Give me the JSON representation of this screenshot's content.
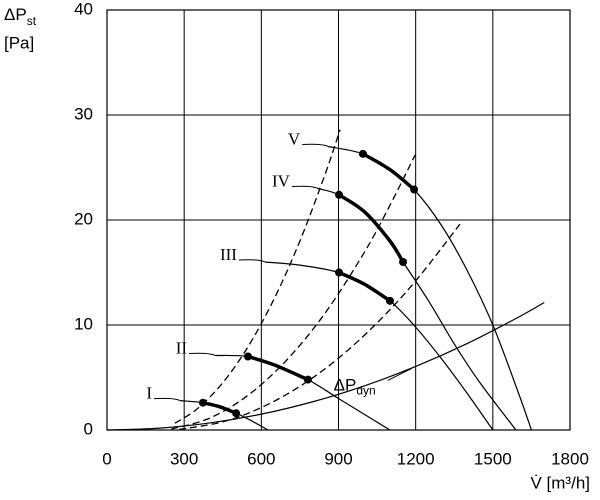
{
  "chart_data": {
    "type": "line",
    "x_label": "V̇ [m³/h]",
    "y_label": "ΔP",
    "y_label_sub": "st",
    "y_label_unit": "[Pa]",
    "xlim": [
      0,
      1800
    ],
    "xticks": [
      0,
      300,
      600,
      900,
      1200,
      1500,
      1800
    ],
    "ylim": [
      0,
      40
    ],
    "yticks": [
      0,
      10,
      20,
      30,
      40
    ],
    "grid": true,
    "color": "#000000",
    "fan_curves": [
      {
        "name": "I",
        "x": [
          284,
          373,
          440,
          502,
          560,
          626
        ],
        "values": [
          2.8,
          2.6,
          2.2,
          1.6,
          0.9,
          0
        ],
        "operating": {
          "x": [
            373,
            440,
            502
          ],
          "values": [
            2.6,
            2.2,
            1.6
          ]
        }
      },
      {
        "name": "II",
        "x": [
          420,
          548,
          650,
          781,
          900,
          1000,
          1100
        ],
        "values": [
          7.1,
          7.0,
          6.2,
          4.8,
          3.0,
          1.5,
          0
        ],
        "operating": {
          "x": [
            548,
            650,
            781
          ],
          "values": [
            7.0,
            6.2,
            4.8
          ]
        }
      },
      {
        "name": "III",
        "x": [
          614,
          750,
          902,
          1000,
          1100,
          1200,
          1300,
          1400,
          1500
        ],
        "values": [
          16,
          15.7,
          15,
          13.9,
          12.3,
          9.8,
          6.8,
          3.5,
          0
        ],
        "operating": {
          "x": [
            902,
            1000,
            1100
          ],
          "values": [
            15,
            13.9,
            12.3
          ]
        }
      },
      {
        "name": "IV",
        "x": [
          820,
          902,
          1000,
          1100,
          1151,
          1250,
          1350,
          1450,
          1590
        ],
        "values": [
          23,
          22.4,
          20.8,
          18,
          16,
          12.3,
          8.2,
          4.5,
          0
        ],
        "operating": {
          "x": [
            902,
            1000,
            1100,
            1151
          ],
          "values": [
            22.4,
            20.8,
            18,
            16
          ]
        }
      },
      {
        "name": "V",
        "x": [
          860,
          995,
          1100,
          1194,
          1300,
          1400,
          1500,
          1600,
          1650
        ],
        "values": [
          27,
          26.3,
          24.8,
          22.9,
          19.5,
          15.2,
          10,
          3.5,
          0
        ],
        "operating": {
          "x": [
            995,
            1100,
            1194
          ],
          "values": [
            26.3,
            24.8,
            22.9
          ]
        }
      }
    ],
    "system_curves_style": "dashed",
    "system_curves": [
      {
        "x": [
          264,
          350,
          450,
          550,
          650,
          750,
          850,
          906
        ],
        "values": [
          0.65,
          2.0,
          4.5,
          8.0,
          12.5,
          18,
          24.5,
          28.6
        ]
      },
      {
        "x": [
          250,
          400,
          550,
          700,
          850,
          1000,
          1100,
          1198
        ],
        "values": [
          0.09,
          1.14,
          3.34,
          6.7,
          11.2,
          16.9,
          21.4,
          26.2
        ]
      },
      {
        "x": [
          280,
          450,
          600,
          750,
          900,
          1050,
          1200,
          1372
        ],
        "values": [
          0.05,
          0.78,
          2.14,
          4.16,
          6.84,
          10.2,
          14.2,
          19.6
        ]
      }
    ],
    "dynamic_pressure": {
      "name": "ΔP",
      "name_sub": "dyn",
      "x": [
        0,
        200,
        400,
        600,
        800,
        1000,
        1200,
        1400,
        1600,
        1700
      ],
      "values": [
        0,
        0.17,
        0.67,
        1.51,
        2.69,
        4.2,
        6.05,
        8.23,
        10.75,
        12.14
      ]
    }
  }
}
